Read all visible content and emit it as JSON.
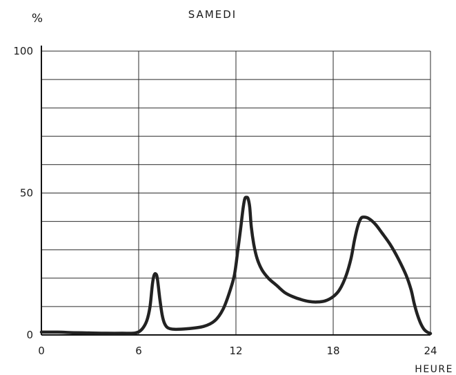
{
  "chart_data": {
    "type": "line",
    "title": "SAMEDI",
    "ylabel": "%",
    "xlabel": "HEURE",
    "xlim": [
      0,
      24
    ],
    "ylim": [
      0,
      100
    ],
    "x_ticks": [
      "0",
      "6",
      "12",
      "18",
      "24"
    ],
    "y_ticks": [
      "0",
      "50",
      "100"
    ],
    "grid": true,
    "series": [
      {
        "x": [
          0,
          1,
          2,
          3,
          4,
          5,
          5.8,
          6.2,
          6.5,
          6.7,
          6.85,
          6.95,
          7.05,
          7.15,
          7.3,
          7.45,
          7.6,
          7.8,
          8.2,
          9,
          10,
          10.7,
          11.2,
          11.6,
          11.9,
          12.1,
          12.3,
          12.45,
          12.55,
          12.65,
          12.75,
          12.85,
          12.95,
          13.1,
          13.3,
          13.6,
          14,
          14.5,
          15,
          15.5,
          16,
          16.5,
          17,
          17.5,
          18,
          18.4,
          18.8,
          19.1,
          19.3,
          19.5,
          19.7,
          19.9,
          20.2,
          20.6,
          21,
          21.5,
          22,
          22.5,
          22.8,
          23,
          23.2,
          23.4,
          23.6,
          23.8,
          24
        ],
        "values": [
          1,
          1,
          0.8,
          0.7,
          0.6,
          0.6,
          0.7,
          2,
          5,
          10,
          18,
          21,
          21.5,
          20,
          13,
          7,
          4,
          2.5,
          2,
          2.2,
          3,
          5,
          9,
          15,
          21,
          29,
          38,
          45,
          48,
          48.5,
          48,
          45,
          38,
          32,
          27,
          23,
          20,
          17.5,
          15,
          13.5,
          12.5,
          11.8,
          11.6,
          12,
          13.5,
          16,
          21,
          27,
          33,
          38,
          41,
          41.5,
          41,
          39,
          36,
          32,
          27,
          21,
          16,
          11,
          7,
          4,
          2,
          1,
          0.5
        ]
      }
    ]
  }
}
